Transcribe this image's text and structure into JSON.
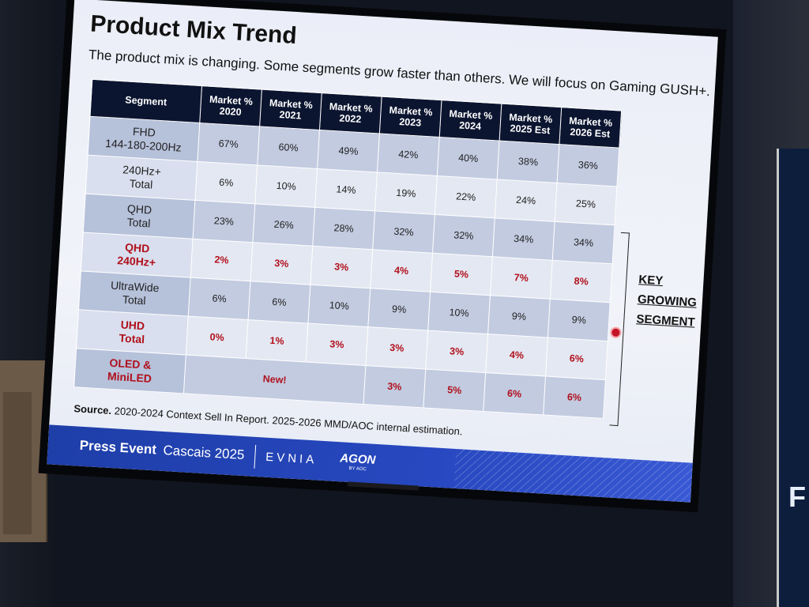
{
  "slide": {
    "title": "Product Mix Trend",
    "subtitle": "The product mix is changing. Some segments grow faster than others. We will focus on Gaming GUSH+.",
    "table": {
      "headers": [
        "Segment",
        "Market %\n2020",
        "Market %\n2021",
        "Market %\n2022",
        "Market %\n2023",
        "Market %\n2024",
        "Market %\n2025 Est",
        "Market %\n2026 Est"
      ],
      "rows": [
        {
          "segment": "FHD\n144-180-200Hz",
          "values": [
            "67%",
            "60%",
            "49%",
            "42%",
            "40%",
            "38%",
            "36%"
          ]
        },
        {
          "segment": "240Hz+\nTotal",
          "values": [
            "6%",
            "10%",
            "14%",
            "19%",
            "22%",
            "24%",
            "25%"
          ]
        },
        {
          "segment": "QHD\nTotal",
          "values": [
            "23%",
            "26%",
            "28%",
            "32%",
            "32%",
            "34%",
            "34%"
          ]
        },
        {
          "segment": "QHD\n240Hz+",
          "values": [
            "2%",
            "3%",
            "3%",
            "4%",
            "5%",
            "7%",
            "8%"
          ]
        },
        {
          "segment": "UltraWide\nTotal",
          "values": [
            "6%",
            "6%",
            "10%",
            "9%",
            "10%",
            "9%",
            "9%"
          ]
        },
        {
          "segment": "UHD\nTotal",
          "values": [
            "0%",
            "1%",
            "3%",
            "3%",
            "3%",
            "4%",
            "6%"
          ]
        },
        {
          "segment": "OLED &\nMiniLED",
          "new_label": "New!",
          "values": [
            "3%",
            "5%",
            "6%",
            "6%"
          ]
        }
      ]
    },
    "key_label": [
      "KEY",
      "GROWING",
      "SEGMENT"
    ],
    "source_label": "Source.",
    "source_text": " 2020-2024 Context Sell In Report. 2025-2026 MMD/AOC internal estimation.",
    "footer": {
      "press": "Press Event",
      "location": "Cascais 2025",
      "brand1": "EVNIA",
      "brand2": "AGON",
      "brand2_sub": "BY AOC"
    }
  },
  "background": {
    "banner_letter": "F"
  },
  "colors": {
    "header_bg": "#0c1530",
    "highlight_red": "#b0101c",
    "footer_blue": "#2748c0"
  }
}
